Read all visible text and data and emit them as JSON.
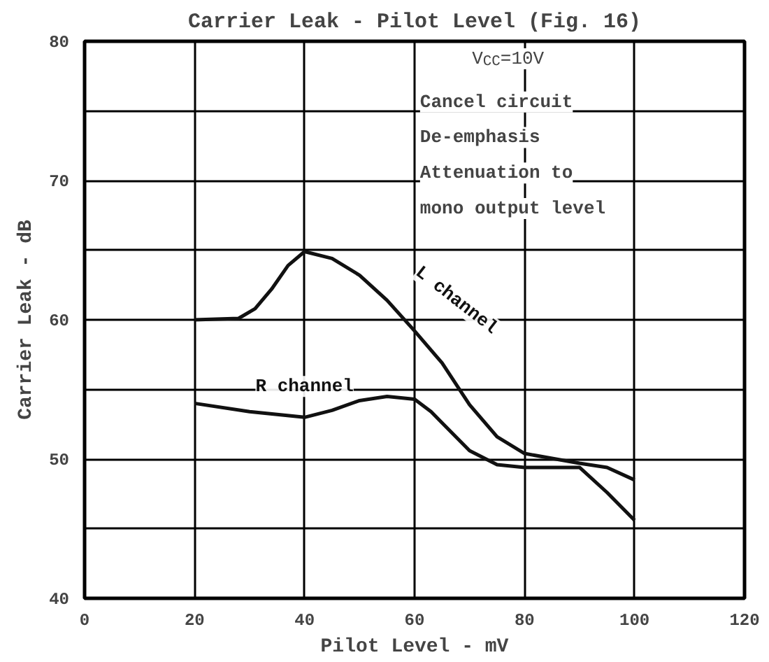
{
  "chart_data": {
    "type": "line",
    "title": "Carrier Leak - Pilot Level (Fig. 16)",
    "xlabel": "Pilot Level - mV",
    "ylabel": "Carrier Leak - dB",
    "xlim": [
      0,
      120
    ],
    "ylim": [
      40,
      80
    ],
    "xticks": [
      0,
      20,
      40,
      60,
      80,
      100,
      120
    ],
    "yticks": [
      40,
      {
        "value": 45,
        "label": null
      },
      50,
      {
        "value": 55,
        "label": null
      },
      60,
      {
        "value": 65,
        "label": null
      },
      70,
      {
        "value": 75,
        "label": null
      },
      80
    ],
    "grid": true,
    "legend": false,
    "marker": "none",
    "line_style": "solid",
    "series": [
      {
        "name": "L channel",
        "color": "#111111",
        "x": [
          20,
          28,
          31,
          34,
          37,
          40,
          45,
          50,
          55,
          60,
          65,
          70,
          75,
          80,
          90,
          95,
          100
        ],
        "values": [
          60,
          60.1,
          60.8,
          62.2,
          63.9,
          64.9,
          64.4,
          63.2,
          61.4,
          59.2,
          56.9,
          53.9,
          51.6,
          50.4,
          49.7,
          49.4,
          48.5
        ]
      },
      {
        "name": "R channel",
        "color": "#111111",
        "x": [
          20,
          30,
          40,
          45,
          50,
          55,
          60,
          63,
          65,
          70,
          75,
          80,
          90,
          95,
          100
        ],
        "values": [
          54.0,
          53.4,
          53.0,
          53.5,
          54.2,
          54.5,
          54.3,
          53.4,
          52.6,
          50.6,
          49.6,
          49.4,
          49.4,
          47.6,
          45.6
        ]
      }
    ],
    "annotations": [
      "V$_{CC}$=10V",
      "Cancel circuit\nDe-emphasis\nAttenuation to\nmono output level"
    ]
  }
}
